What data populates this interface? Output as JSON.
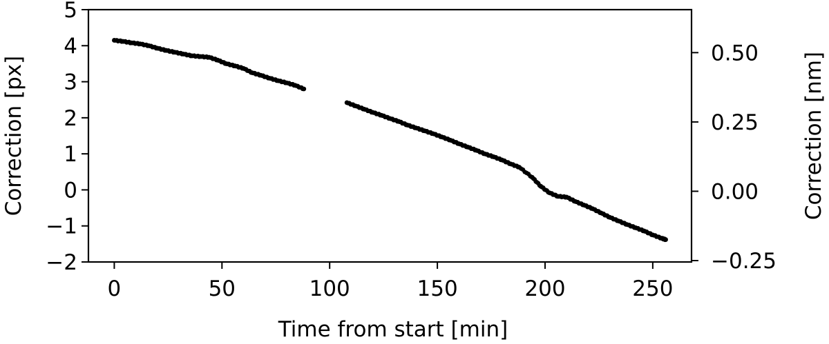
{
  "chart_data": {
    "type": "scatter",
    "xlabel": "Time from start [min]",
    "ylabel": "Correction [px]",
    "ylabel_right": "Correction [nm]",
    "xlim": [
      -12,
      268
    ],
    "ylim": [
      -2,
      5
    ],
    "ylim_right": [
      -0.255,
      0.655
    ],
    "x_ticks": [
      0,
      50,
      100,
      150,
      200,
      250
    ],
    "x_tick_labels": [
      "0",
      "50",
      "100",
      "150",
      "200",
      "250"
    ],
    "y_ticks": [
      -2,
      -1,
      0,
      1,
      2,
      3,
      4,
      5
    ],
    "y_tick_labels": [
      "−2",
      "−1",
      "0",
      "1",
      "2",
      "3",
      "4",
      "5"
    ],
    "y_right_ticks": [
      -0.25,
      0,
      0.25,
      0.5
    ],
    "y_right_tick_labels": [
      "−0.25",
      "0.00",
      "0.25",
      "0.50"
    ],
    "grid": false,
    "marker_color": "#000000",
    "series": [
      {
        "x": [
          0,
          4,
          8,
          12,
          16,
          20,
          24,
          28,
          32,
          36,
          40,
          44,
          48,
          52,
          56,
          60,
          64,
          68,
          72,
          76,
          80,
          84,
          88,
          108,
          112,
          116,
          120,
          124,
          128,
          132,
          136,
          140,
          144,
          148,
          152,
          156,
          160,
          164,
          168,
          172,
          176,
          180,
          184,
          188,
          194,
          198,
          202,
          206,
          210,
          214,
          218,
          222,
          226,
          230,
          234,
          238,
          242,
          246,
          250,
          254,
          256
        ],
        "y": [
          4.15,
          4.12,
          4.08,
          4.05,
          4.0,
          3.93,
          3.87,
          3.82,
          3.77,
          3.72,
          3.7,
          3.68,
          3.6,
          3.5,
          3.44,
          3.37,
          3.25,
          3.18,
          3.1,
          3.03,
          2.97,
          2.9,
          2.8,
          2.42,
          2.33,
          2.24,
          2.15,
          2.07,
          1.98,
          1.9,
          1.8,
          1.72,
          1.64,
          1.56,
          1.47,
          1.38,
          1.28,
          1.19,
          1.1,
          1.0,
          0.92,
          0.83,
          0.72,
          0.63,
          0.35,
          0.1,
          -0.08,
          -0.18,
          -0.2,
          -0.32,
          -0.42,
          -0.52,
          -0.64,
          -0.76,
          -0.86,
          -0.96,
          -1.05,
          -1.14,
          -1.25,
          -1.34,
          -1.38
        ]
      }
    ]
  }
}
